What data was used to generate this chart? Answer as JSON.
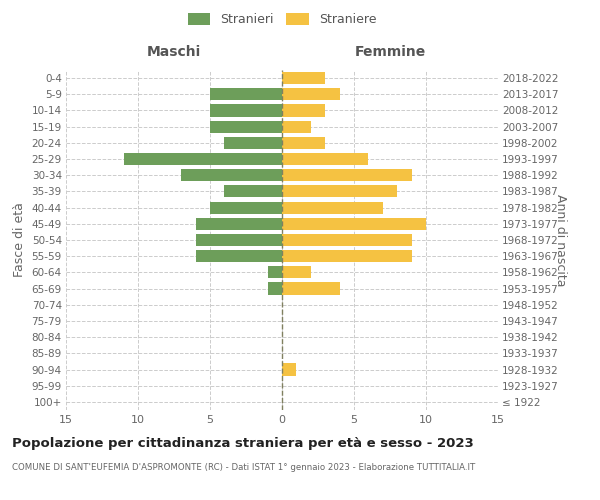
{
  "age_groups": [
    "100+",
    "95-99",
    "90-94",
    "85-89",
    "80-84",
    "75-79",
    "70-74",
    "65-69",
    "60-64",
    "55-59",
    "50-54",
    "45-49",
    "40-44",
    "35-39",
    "30-34",
    "25-29",
    "20-24",
    "15-19",
    "10-14",
    "5-9",
    "0-4"
  ],
  "birth_years": [
    "≤ 1922",
    "1923-1927",
    "1928-1932",
    "1933-1937",
    "1938-1942",
    "1943-1947",
    "1948-1952",
    "1953-1957",
    "1958-1962",
    "1963-1967",
    "1968-1972",
    "1973-1977",
    "1978-1982",
    "1983-1987",
    "1988-1992",
    "1993-1997",
    "1998-2002",
    "2003-2007",
    "2008-2012",
    "2013-2017",
    "2018-2022"
  ],
  "males": [
    0,
    0,
    0,
    0,
    0,
    0,
    0,
    1,
    1,
    6,
    6,
    6,
    5,
    4,
    7,
    11,
    4,
    5,
    5,
    5,
    0
  ],
  "females": [
    0,
    0,
    1,
    0,
    0,
    0,
    0,
    4,
    2,
    9,
    9,
    10,
    7,
    8,
    9,
    6,
    3,
    2,
    3,
    4,
    3
  ],
  "male_color": "#6d9e5a",
  "female_color": "#f5c242",
  "title": "Popolazione per cittadinanza straniera per età e sesso - 2023",
  "subtitle": "COMUNE DI SANT'EUFEMIA D'ASPROMONTE (RC) - Dati ISTAT 1° gennaio 2023 - Elaborazione TUTTITALIA.IT",
  "left_label": "Maschi",
  "right_label": "Femmine",
  "y_left_label": "Fasce di età",
  "y_right_label": "Anni di nascita",
  "legend_male": "Stranieri",
  "legend_female": "Straniere",
  "xlim": 15,
  "background_color": "#ffffff",
  "grid_color": "#cccccc"
}
